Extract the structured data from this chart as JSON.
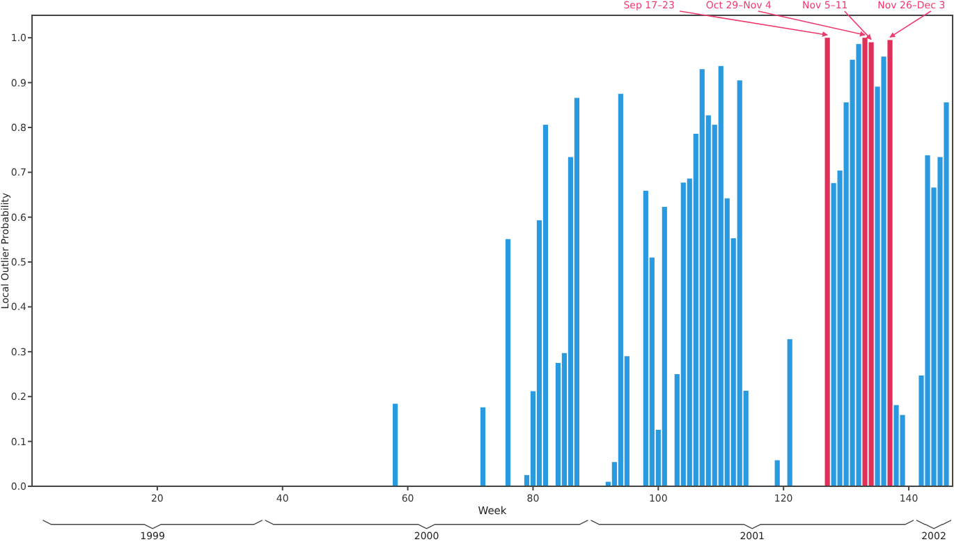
{
  "chart_data": {
    "type": "bar",
    "xlabel": "Week",
    "ylabel": "Local Outlier Probability",
    "x": [
      58,
      72,
      76,
      79,
      80,
      81,
      82,
      84,
      85,
      86,
      87,
      92,
      93,
      94,
      95,
      98,
      99,
      100,
      101,
      103,
      104,
      105,
      106,
      107,
      108,
      109,
      110,
      111,
      112,
      113,
      114,
      119,
      121,
      127,
      128,
      129,
      130,
      131,
      132,
      133,
      134,
      135,
      136,
      137,
      138,
      139,
      142,
      143,
      144,
      145,
      146
    ],
    "values": [
      0.184,
      0.176,
      0.551,
      0.025,
      0.212,
      0.593,
      0.806,
      0.275,
      0.297,
      0.734,
      0.866,
      0.01,
      0.054,
      0.875,
      0.29,
      0.659,
      0.51,
      0.126,
      0.623,
      0.25,
      0.677,
      0.686,
      0.786,
      0.93,
      0.827,
      0.806,
      0.937,
      0.642,
      0.553,
      0.905,
      0.213,
      0.058,
      0.328,
      1.0,
      0.676,
      0.704,
      0.856,
      0.951,
      0.986,
      1.0,
      0.99,
      0.891,
      0.958,
      0.995,
      0.181,
      0.159,
      0.247,
      0.738,
      0.666,
      0.734,
      0.856
    ],
    "colors": [
      "#2a9ae0",
      "#2a9ae0",
      "#2a9ae0",
      "#2a9ae0",
      "#2a9ae0",
      "#2a9ae0",
      "#2a9ae0",
      "#2a9ae0",
      "#2a9ae0",
      "#2a9ae0",
      "#2a9ae0",
      "#2a9ae0",
      "#2a9ae0",
      "#2a9ae0",
      "#2a9ae0",
      "#2a9ae0",
      "#2a9ae0",
      "#2a9ae0",
      "#2a9ae0",
      "#2a9ae0",
      "#2a9ae0",
      "#2a9ae0",
      "#2a9ae0",
      "#2a9ae0",
      "#2a9ae0",
      "#2a9ae0",
      "#2a9ae0",
      "#2a9ae0",
      "#2a9ae0",
      "#2a9ae0",
      "#2a9ae0",
      "#2a9ae0",
      "#2a9ae0",
      "#e0305a",
      "#2a9ae0",
      "#2a9ae0",
      "#2a9ae0",
      "#2a9ae0",
      "#2a9ae0",
      "#e0305a",
      "#e0305a",
      "#2a9ae0",
      "#2a9ae0",
      "#e0305a",
      "#2a9ae0",
      "#2a9ae0",
      "#2a9ae0",
      "#2a9ae0",
      "#2a9ae0",
      "#2a9ae0",
      "#2a9ae0"
    ],
    "xlim": [
      0,
      147
    ],
    "ylim": [
      0,
      1.05
    ],
    "xticks": [
      20,
      40,
      60,
      80,
      100,
      120,
      140
    ],
    "yticks": [
      {
        "value": 0,
        "label": "0.0"
      },
      {
        "value": 0.1,
        "label": "0.1"
      },
      {
        "value": 0.2,
        "label": "0.2"
      },
      {
        "value": 0.3,
        "label": "0.3"
      },
      {
        "value": 0.4,
        "label": "0.4"
      },
      {
        "value": 0.5,
        "label": "0.5"
      },
      {
        "value": 0.6,
        "label": "0.6"
      },
      {
        "value": 0.7,
        "label": "0.7"
      },
      {
        "value": 0.8,
        "label": "0.8"
      },
      {
        "value": 0.9,
        "label": "0.9"
      },
      {
        "value": 1,
        "label": "1.0"
      }
    ],
    "annotations": [
      {
        "text": "Sep 17–23",
        "x": 127,
        "y": 1.0
      },
      {
        "text": "Oct 29–Nov 4",
        "x": 133,
        "y": 1.0
      },
      {
        "text": "Nov 5–11",
        "x": 134,
        "y": 0.99
      },
      {
        "text": "Nov 26–Dec 3",
        "x": 137,
        "y": 0.995
      },
      "1999",
      "2000",
      "2001",
      "2002"
    ]
  }
}
